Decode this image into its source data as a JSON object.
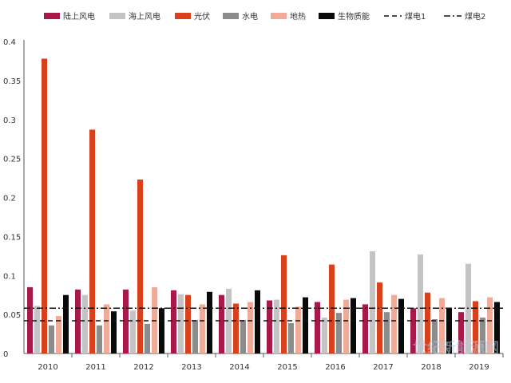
{
  "chart_data": {
    "type": "bar",
    "title": "",
    "xlabel": "",
    "ylabel": "",
    "ylim": [
      0,
      0.4
    ],
    "yticks": [
      "0",
      "0.05",
      "0.1",
      "0.15",
      "0.2",
      "0.25",
      "0.3",
      "0.35",
      "0.4"
    ],
    "categories": [
      "2010",
      "2011",
      "2012",
      "2013",
      "2014",
      "2015",
      "2016",
      "2017",
      "2018",
      "2019"
    ],
    "series": [
      {
        "name": "陆上风电",
        "color": "#a8184b",
        "values": [
          0.085,
          0.082,
          0.082,
          0.081,
          0.075,
          0.068,
          0.066,
          0.063,
          0.058,
          0.053
        ]
      },
      {
        "name": "海上风电",
        "color": "#c4c4c4",
        "values": [
          0.061,
          0.075,
          0.055,
          0.076,
          0.083,
          0.069,
          0.046,
          0.131,
          0.127,
          0.115
        ]
      },
      {
        "name": "光伏",
        "color": "#d9401c",
        "values": [
          0.378,
          0.287,
          0.223,
          0.075,
          0.064,
          0.126,
          0.114,
          0.091,
          0.078,
          0.067
        ]
      },
      {
        "name": "水电",
        "color": "#8c8c8c",
        "values": [
          0.036,
          0.036,
          0.038,
          0.043,
          0.043,
          0.039,
          0.052,
          0.053,
          0.044,
          0.046
        ]
      },
      {
        "name": "地热",
        "color": "#f0aa98",
        "values": [
          0.048,
          0.063,
          0.085,
          0.063,
          0.066,
          0.06,
          0.069,
          0.075,
          0.071,
          0.072
        ]
      },
      {
        "name": "生物质能",
        "color": "#0a0a0a",
        "values": [
          0.075,
          0.054,
          0.058,
          0.079,
          0.081,
          0.072,
          0.071,
          0.07,
          0.058,
          0.066
        ]
      }
    ],
    "reference_lines": [
      {
        "name": "煤电1",
        "style": "dashed",
        "value": 0.042
      },
      {
        "name": "煤电2",
        "style": "dash-dot",
        "value": 0.058
      }
    ],
    "legend_position": "top",
    "grid": false
  },
  "watermark": "世纪新能源网"
}
